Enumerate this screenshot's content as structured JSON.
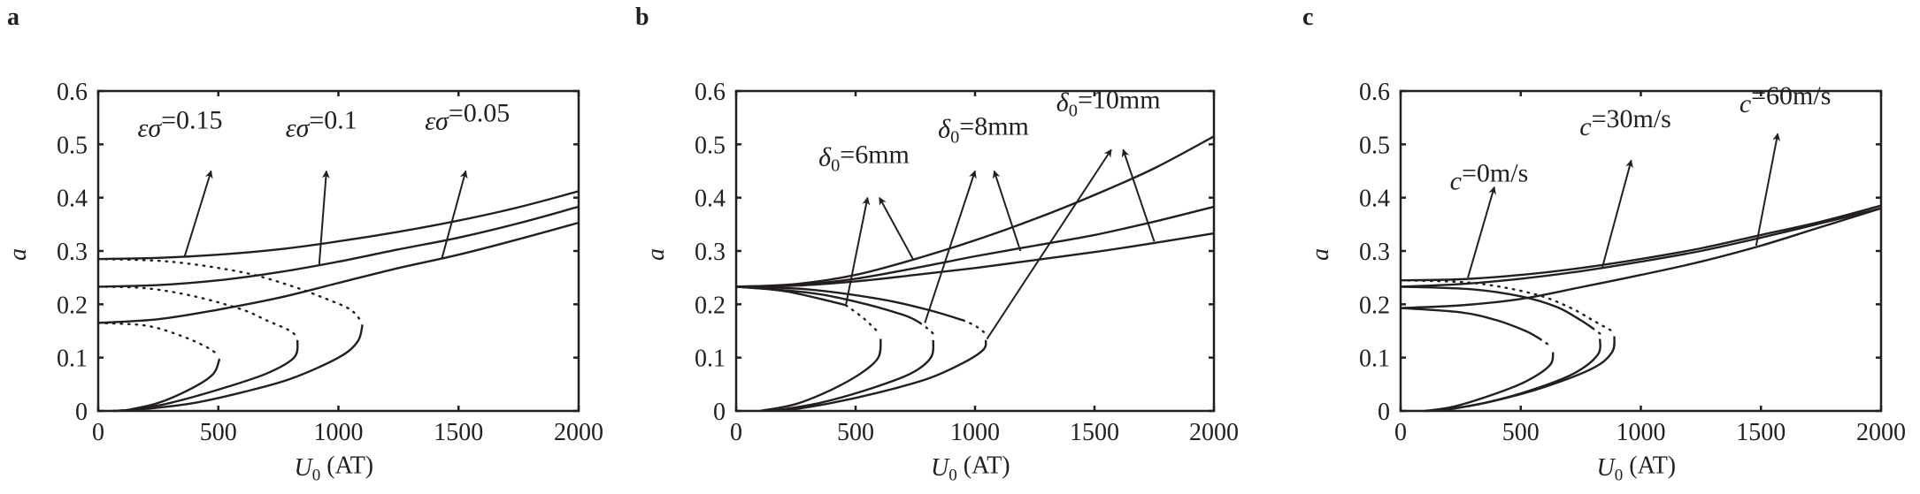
{
  "chart_data": [
    {
      "panel": "a",
      "type": "line",
      "xlabel": {
        "var": "U",
        "sub": "0",
        "rest": " (AT)"
      },
      "ylabel": "a",
      "xlim": [
        0,
        2000
      ],
      "ylim": [
        0,
        0.6
      ],
      "x_ticks": [
        "0",
        "500",
        "1000",
        "1500",
        "2000"
      ],
      "y_ticks": [
        "0",
        "0.1",
        "0.2",
        "0.3",
        "0.4",
        "0.5",
        "0.6"
      ],
      "grid": false,
      "annotations": [
        {
          "var": "εσ",
          "sub": "",
          "rest": "=0.15"
        },
        {
          "var": "εσ",
          "sub": "",
          "rest": "=0.1"
        },
        {
          "var": "εσ",
          "sub": "",
          "rest": "=0.05"
        }
      ],
      "series": [
        {
          "label_ref": 0,
          "upper_stable": [
            [
              0,
              0.285
            ],
            [
              250,
              0.287
            ],
            [
              500,
              0.293
            ],
            [
              750,
              0.303
            ],
            [
              1000,
              0.318
            ],
            [
              1250,
              0.336
            ],
            [
              1500,
              0.357
            ],
            [
              1750,
              0.382
            ],
            [
              2000,
              0.412
            ]
          ],
          "middle_stable": [],
          "unstable": [
            [
              0,
              0.285
            ],
            [
              300,
              0.28
            ],
            [
              600,
              0.26
            ],
            [
              800,
              0.235
            ],
            [
              950,
              0.21
            ],
            [
              1050,
              0.19
            ],
            [
              1095,
              0.168
            ]
          ],
          "lower_stable": [
            [
              1100,
              0.162
            ],
            [
              1080,
              0.13
            ],
            [
              1000,
              0.1
            ],
            [
              800,
              0.06
            ],
            [
              600,
              0.035
            ],
            [
              400,
              0.015
            ],
            [
              200,
              0.004
            ],
            [
              60,
              0
            ]
          ]
        },
        {
          "label_ref": 1,
          "upper_stable": [
            [
              0,
              0.233
            ],
            [
              250,
              0.236
            ],
            [
              500,
              0.245
            ],
            [
              750,
              0.26
            ],
            [
              1000,
              0.28
            ],
            [
              1250,
              0.303
            ],
            [
              1500,
              0.325
            ],
            [
              1750,
              0.352
            ],
            [
              2000,
              0.383
            ]
          ],
          "middle_stable": [],
          "unstable": [
            [
              0,
              0.233
            ],
            [
              200,
              0.23
            ],
            [
              400,
              0.215
            ],
            [
              600,
              0.19
            ],
            [
              700,
              0.17
            ],
            [
              800,
              0.15
            ],
            [
              830,
              0.135
            ]
          ],
          "lower_stable": [
            [
              830,
              0.133
            ],
            [
              815,
              0.1
            ],
            [
              700,
              0.07
            ],
            [
              500,
              0.04
            ],
            [
              300,
              0.015
            ],
            [
              150,
              0.003
            ],
            [
              60,
              0
            ]
          ]
        },
        {
          "label_ref": 2,
          "upper_stable": [
            [
              0,
              0.165
            ],
            [
              250,
              0.172
            ],
            [
              500,
              0.19
            ],
            [
              750,
              0.212
            ],
            [
              1000,
              0.24
            ],
            [
              1250,
              0.268
            ],
            [
              1500,
              0.293
            ],
            [
              1750,
              0.322
            ],
            [
              2000,
              0.353
            ]
          ],
          "middle_stable": [],
          "unstable": [
            [
              0,
              0.165
            ],
            [
              200,
              0.16
            ],
            [
              350,
              0.14
            ],
            [
              450,
              0.12
            ],
            [
              500,
              0.105
            ]
          ],
          "lower_stable": [
            [
              505,
              0.098
            ],
            [
              480,
              0.07
            ],
            [
              400,
              0.045
            ],
            [
              250,
              0.015
            ],
            [
              100,
              0
            ]
          ]
        }
      ]
    },
    {
      "panel": "b",
      "type": "line",
      "xlabel": {
        "var": "U",
        "sub": "0",
        "rest": " (AT)"
      },
      "ylabel": "a",
      "xlim": [
        0,
        2000
      ],
      "ylim": [
        0,
        0.6
      ],
      "x_ticks": [
        "0",
        "500",
        "1000",
        "1500",
        "2000"
      ],
      "y_ticks": [
        "0",
        "0.1",
        "0.2",
        "0.3",
        "0.4",
        "0.5",
        "0.6"
      ],
      "grid": false,
      "annotations": [
        {
          "var": "δ",
          "sub": "0",
          "rest": "=6mm"
        },
        {
          "var": "δ",
          "sub": "0",
          "rest": "=8mm"
        },
        {
          "var": "δ",
          "sub": "0",
          "rest": "=10mm"
        }
      ],
      "series": [
        {
          "label_ref": 0,
          "upper_stable": [
            [
              0,
              0.233
            ],
            [
              250,
              0.238
            ],
            [
              500,
              0.255
            ],
            [
              750,
              0.285
            ],
            [
              1000,
              0.32
            ],
            [
              1250,
              0.36
            ],
            [
              1500,
              0.405
            ],
            [
              1750,
              0.455
            ],
            [
              2000,
              0.515
            ]
          ],
          "middle_stable": [
            [
              0,
              0.233
            ],
            [
              200,
              0.225
            ],
            [
              400,
              0.205
            ],
            [
              460,
              0.198
            ]
          ],
          "unstable": [
            [
              460,
              0.198
            ],
            [
              530,
              0.175
            ],
            [
              590,
              0.15
            ]
          ],
          "lower_stable": [
            [
              605,
              0.135
            ],
            [
              595,
              0.1
            ],
            [
              520,
              0.07
            ],
            [
              400,
              0.04
            ],
            [
              250,
              0.013
            ],
            [
              100,
              0
            ]
          ]
        },
        {
          "label_ref": 1,
          "upper_stable": [
            [
              0,
              0.233
            ],
            [
              250,
              0.236
            ],
            [
              500,
              0.248
            ],
            [
              750,
              0.268
            ],
            [
              1000,
              0.29
            ],
            [
              1250,
              0.31
            ],
            [
              1500,
              0.33
            ],
            [
              1750,
              0.355
            ],
            [
              2000,
              0.383
            ]
          ],
          "middle_stable": [
            [
              0,
              0.233
            ],
            [
              300,
              0.222
            ],
            [
              500,
              0.205
            ],
            [
              700,
              0.18
            ],
            [
              770,
              0.165
            ]
          ],
          "unstable": [
            [
              770,
              0.165
            ],
            [
              800,
              0.155
            ],
            [
              825,
              0.145
            ]
          ],
          "lower_stable": [
            [
              825,
              0.133
            ],
            [
              815,
              0.1
            ],
            [
              730,
              0.07
            ],
            [
              550,
              0.04
            ],
            [
              350,
              0.015
            ],
            [
              150,
              0
            ]
          ]
        },
        {
          "label_ref": 2,
          "upper_stable": [
            [
              0,
              0.233
            ],
            [
              250,
              0.235
            ],
            [
              500,
              0.243
            ],
            [
              750,
              0.255
            ],
            [
              1000,
              0.268
            ],
            [
              1250,
              0.283
            ],
            [
              1500,
              0.298
            ],
            [
              1750,
              0.315
            ],
            [
              2000,
              0.333
            ]
          ],
          "middle_stable": [
            [
              0,
              0.233
            ],
            [
              300,
              0.228
            ],
            [
              600,
              0.21
            ],
            [
              800,
              0.19
            ],
            [
              950,
              0.17
            ]
          ],
          "unstable": [
            [
              950,
              0.17
            ],
            [
              1000,
              0.16
            ],
            [
              1045,
              0.145
            ]
          ],
          "lower_stable": [
            [
              1045,
              0.133
            ],
            [
              1035,
              0.115
            ],
            [
              950,
              0.09
            ],
            [
              800,
              0.06
            ],
            [
              600,
              0.035
            ],
            [
              400,
              0.015
            ],
            [
              200,
              0
            ]
          ]
        }
      ]
    },
    {
      "panel": "c",
      "type": "line",
      "xlabel": {
        "var": "U",
        "sub": "0",
        "rest": " (AT)"
      },
      "ylabel": "a",
      "xlim": [
        0,
        2000
      ],
      "ylim": [
        0,
        0.6
      ],
      "x_ticks": [
        "0",
        "500",
        "1000",
        "1500",
        "2000"
      ],
      "y_ticks": [
        "0",
        "0.1",
        "0.2",
        "0.3",
        "0.4",
        "0.5",
        "0.6"
      ],
      "grid": false,
      "annotations": [
        {
          "var": "c",
          "sub": "",
          "rest": "=0m/s"
        },
        {
          "var": "c",
          "sub": "",
          "rest": "=30m/s"
        },
        {
          "var": "c",
          "sub": "",
          "rest": "=60m/s"
        }
      ],
      "series": [
        {
          "label_ref": 0,
          "upper_stable": [
            [
              0,
              0.245
            ],
            [
              250,
              0.247
            ],
            [
              500,
              0.255
            ],
            [
              750,
              0.268
            ],
            [
              1000,
              0.285
            ],
            [
              1250,
              0.305
            ],
            [
              1500,
              0.33
            ],
            [
              1750,
              0.355
            ],
            [
              2000,
              0.385
            ]
          ],
          "middle_stable": [],
          "unstable": [
            [
              0,
              0.245
            ],
            [
              300,
              0.24
            ],
            [
              550,
              0.22
            ],
            [
              700,
              0.195
            ],
            [
              800,
              0.17
            ],
            [
              880,
              0.15
            ]
          ],
          "lower_stable": [
            [
              890,
              0.14
            ],
            [
              880,
              0.11
            ],
            [
              800,
              0.08
            ],
            [
              600,
              0.045
            ],
            [
              400,
              0.02
            ],
            [
              200,
              0.003
            ],
            [
              100,
              0
            ]
          ]
        },
        {
          "label_ref": 1,
          "upper_stable": [
            [
              0,
              0.233
            ],
            [
              250,
              0.238
            ],
            [
              500,
              0.248
            ],
            [
              750,
              0.262
            ],
            [
              1000,
              0.28
            ],
            [
              1250,
              0.3
            ],
            [
              1500,
              0.325
            ],
            [
              1750,
              0.352
            ],
            [
              2000,
              0.38
            ]
          ],
          "middle_stable": [
            [
              0,
              0.233
            ],
            [
              300,
              0.228
            ],
            [
              500,
              0.215
            ],
            [
              650,
              0.195
            ],
            [
              750,
              0.17
            ],
            [
              800,
              0.155
            ]
          ],
          "unstable": [
            [
              800,
              0.155
            ],
            [
              830,
              0.145
            ]
          ],
          "lower_stable": [
            [
              830,
              0.135
            ],
            [
              820,
              0.105
            ],
            [
              720,
              0.07
            ],
            [
              550,
              0.04
            ],
            [
              350,
              0.015
            ],
            [
              150,
              0
            ]
          ]
        },
        {
          "label_ref": 2,
          "upper_stable": [
            [
              0,
              0.193
            ],
            [
              250,
              0.198
            ],
            [
              500,
              0.21
            ],
            [
              750,
              0.232
            ],
            [
              1000,
              0.255
            ],
            [
              1250,
              0.28
            ],
            [
              1500,
              0.31
            ],
            [
              1750,
              0.345
            ],
            [
              2000,
              0.38
            ]
          ],
          "middle_stable": [
            [
              0,
              0.193
            ],
            [
              250,
              0.185
            ],
            [
              400,
              0.17
            ],
            [
              520,
              0.15
            ],
            [
              580,
              0.135
            ]
          ],
          "unstable": [
            [
              580,
              0.135
            ],
            [
              630,
              0.12
            ]
          ],
          "lower_stable": [
            [
              635,
              0.11
            ],
            [
              620,
              0.085
            ],
            [
              520,
              0.055
            ],
            [
              380,
              0.03
            ],
            [
              220,
              0.008
            ],
            [
              100,
              0
            ]
          ]
        }
      ]
    }
  ],
  "colors": {
    "ink": "#231f20",
    "background": "#ffffff"
  }
}
